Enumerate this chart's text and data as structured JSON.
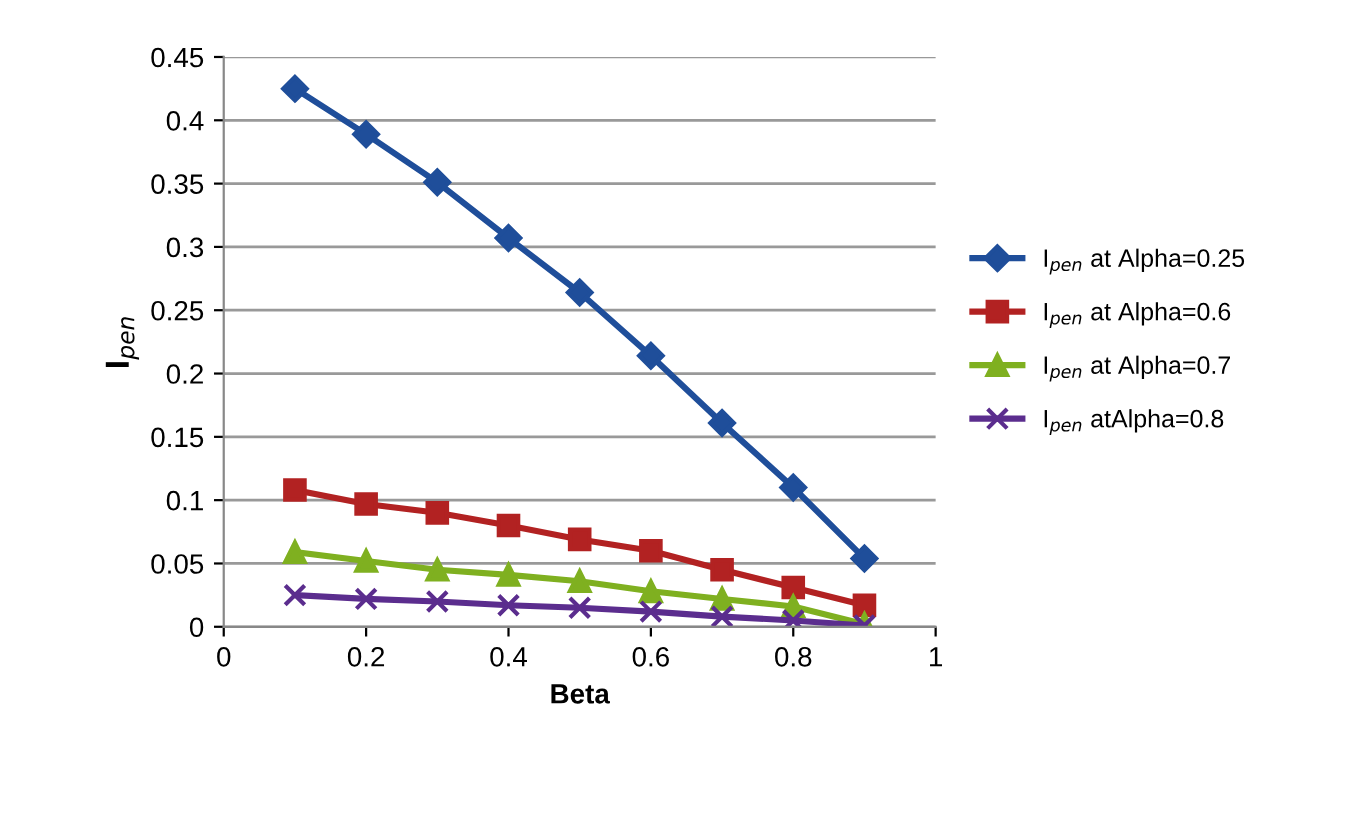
{
  "chart_data": {
    "type": "line",
    "xlabel": "Beta",
    "ylabel": "I$_{pen}$",
    "x": [
      0.1,
      0.2,
      0.3,
      0.4,
      0.5,
      0.6,
      0.7,
      0.8,
      0.9
    ],
    "series": [
      {
        "name": "I$_{pen}$ at Alpha=0.25",
        "color": "#1f4e9a",
        "marker": "diamond",
        "values": [
          0.425,
          0.389,
          0.351,
          0.307,
          0.264,
          0.214,
          0.161,
          0.11,
          0.054
        ]
      },
      {
        "name": "I$_{pen}$ at Alpha=0.6",
        "color": "#b22222",
        "marker": "square",
        "values": [
          0.108,
          0.097,
          0.09,
          0.08,
          0.069,
          0.06,
          0.045,
          0.031,
          0.017
        ]
      },
      {
        "name": "I$_{pen}$ at Alpha=0.7",
        "color": "#7fb020",
        "marker": "triangle",
        "values": [
          0.059,
          0.052,
          0.045,
          0.041,
          0.036,
          0.028,
          0.022,
          0.016,
          0.002
        ]
      },
      {
        "name": "I$_{pen}$ atAlpha=0.8",
        "color": "#5b2d8e",
        "marker": "cross",
        "values": [
          0.025,
          0.022,
          0.02,
          0.017,
          0.015,
          0.012,
          0.008,
          0.005,
          0.001
        ]
      }
    ],
    "xlim": [
      0,
      1
    ],
    "xticks": [
      0,
      0.2,
      0.4,
      0.6,
      0.8,
      1
    ],
    "ylim": [
      0,
      0.45
    ],
    "yticks": [
      0,
      0.05,
      0.1,
      0.15,
      0.2,
      0.25,
      0.3,
      0.35,
      0.4,
      0.45
    ],
    "grid": "y",
    "legend": "right",
    "line_style": "solid"
  }
}
